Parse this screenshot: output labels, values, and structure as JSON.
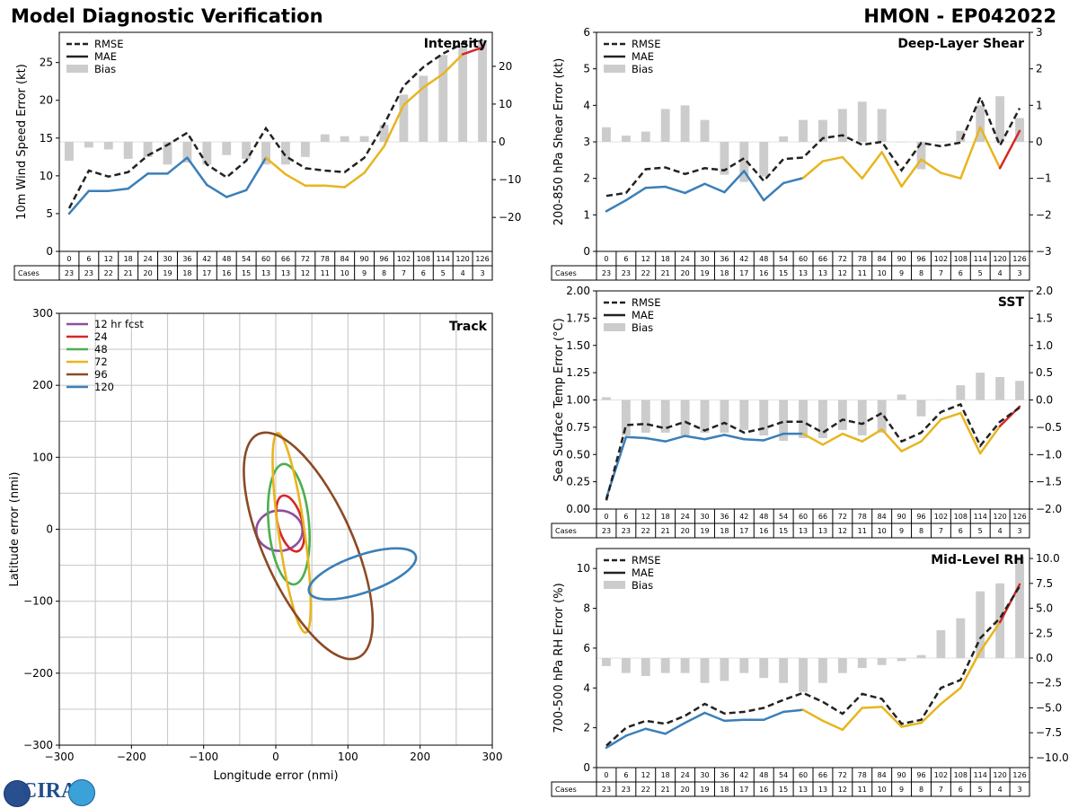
{
  "header": {
    "left_title": "Model Diagnostic Verification",
    "right_title": "HMON - EP042022"
  },
  "logo": {
    "text": "CIRA"
  },
  "colors": {
    "rmse": "#222222",
    "mae_early": "#3b7fb8",
    "mae_mid": "#e8b51e",
    "mae_late": "#d62728",
    "bias": "#cccccc",
    "track_12": "#8e4fa0",
    "track_24": "#d62728",
    "track_48": "#4caf50",
    "track_72": "#e8b51e",
    "track_96": "#8b4a25",
    "track_120": "#3b7fb8",
    "grid": "#cccccc"
  },
  "chart_data": [
    {
      "id": "intensity",
      "type": "line",
      "title": "Intensity",
      "ylabel": "10m Wind Speed Error (kt)",
      "ylim": [
        0,
        29
      ],
      "yticks": [
        0,
        5,
        10,
        15,
        20,
        25
      ],
      "y2lim": [
        -29,
        29
      ],
      "y2ticks": [
        -20,
        -10,
        0,
        10,
        20
      ],
      "x": [
        0,
        6,
        12,
        18,
        24,
        30,
        36,
        42,
        48,
        54,
        60,
        66,
        72,
        78,
        84,
        90,
        96,
        102,
        108,
        114,
        120,
        126
      ],
      "cases": [
        23,
        23,
        22,
        21,
        20,
        19,
        18,
        17,
        16,
        15,
        13,
        13,
        12,
        11,
        10,
        9,
        8,
        7,
        6,
        5,
        4,
        3
      ],
      "legend": [
        "RMSE",
        "MAE",
        "Bias"
      ],
      "rmse": [
        5.7,
        10.7,
        9.9,
        10.5,
        12.7,
        14.1,
        15.7,
        11.5,
        9.8,
        12,
        16.3,
        12.6,
        11,
        10.7,
        10.5,
        12.4,
        16.8,
        21.9,
        24.4,
        26.2,
        27.5,
        28
      ],
      "mae": [
        5,
        8,
        8,
        8.3,
        10.3,
        10.3,
        12.4,
        8.8,
        7.2,
        8.1,
        12.4,
        10.2,
        8.7,
        8.7,
        8.5,
        10.4,
        13.9,
        19.4,
        21.7,
        23.5,
        26.1,
        27
      ],
      "bias": [
        -5,
        -1.5,
        -2,
        -4.5,
        -4,
        -6,
        -5.5,
        -6,
        -3.5,
        -4.5,
        -6,
        -6,
        -4,
        2,
        1.5,
        1.5,
        4.5,
        12.5,
        17.5,
        23,
        25.5,
        27
      ]
    },
    {
      "id": "shear",
      "type": "line",
      "title": "Deep-Layer Shear",
      "ylabel": "200-850 hPa Shear Error (kt)",
      "ylim": [
        0,
        6
      ],
      "yticks": [
        0,
        1,
        2,
        3,
        4,
        5,
        6
      ],
      "y2lim": [
        -3,
        3
      ],
      "y2ticks": [
        -3,
        -2,
        -1,
        0,
        1,
        2,
        3
      ],
      "x": [
        0,
        6,
        12,
        18,
        24,
        30,
        36,
        42,
        48,
        54,
        60,
        66,
        72,
        78,
        84,
        90,
        96,
        102,
        108,
        114,
        120,
        126
      ],
      "cases": [
        23,
        23,
        22,
        21,
        20,
        19,
        18,
        17,
        16,
        15,
        13,
        13,
        12,
        11,
        10,
        9,
        8,
        7,
        6,
        5,
        4,
        3
      ],
      "legend": [
        "RMSE",
        "MAE",
        "Bias"
      ],
      "rmse": [
        1.52,
        1.6,
        2.25,
        2.3,
        2.12,
        2.28,
        2.22,
        2.55,
        1.93,
        2.53,
        2.57,
        3.1,
        3.18,
        2.92,
        3.0,
        2.22,
        2.97,
        2.88,
        2.98,
        4.22,
        2.9,
        3.92
      ],
      "mae": [
        1.1,
        1.4,
        1.74,
        1.77,
        1.6,
        1.85,
        1.62,
        2.2,
        1.4,
        1.87,
        2.01,
        2.47,
        2.58,
        2.0,
        2.72,
        1.78,
        2.52,
        2.15,
        2.0,
        3.4,
        2.28,
        3.3
      ],
      "bias": [
        0.4,
        0.17,
        0.28,
        0.9,
        1.0,
        0.6,
        -0.9,
        -1.1,
        -0.95,
        0.15,
        0.6,
        0.6,
        0.9,
        1.1,
        0.9,
        0,
        -0.75,
        0,
        0.3,
        1.0,
        1.25,
        0.65
      ]
    },
    {
      "id": "sst",
      "type": "line",
      "title": "SST",
      "ylabel": "Sea Surface Temp Error (°C)",
      "ylim": [
        0,
        2
      ],
      "yticks": [
        0.0,
        0.25,
        0.5,
        0.75,
        1.0,
        1.25,
        1.5,
        1.75,
        2.0
      ],
      "y2lim": [
        -2,
        2
      ],
      "y2ticks": [
        -2.0,
        -1.5,
        -1.0,
        -0.5,
        0.0,
        0.5,
        1.0,
        1.5,
        2.0
      ],
      "x": [
        0,
        6,
        12,
        18,
        24,
        30,
        36,
        42,
        48,
        54,
        60,
        66,
        72,
        78,
        84,
        90,
        96,
        102,
        108,
        114,
        120,
        126
      ],
      "cases": [
        23,
        23,
        22,
        21,
        20,
        19,
        18,
        17,
        16,
        15,
        13,
        13,
        12,
        11,
        10,
        9,
        8,
        7,
        6,
        5,
        4,
        3
      ],
      "legend": [
        "RMSE",
        "MAE",
        "Bias"
      ],
      "rmse": [
        0.08,
        0.77,
        0.78,
        0.74,
        0.8,
        0.72,
        0.79,
        0.7,
        0.74,
        0.8,
        0.8,
        0.7,
        0.82,
        0.78,
        0.88,
        0.62,
        0.7,
        0.89,
        0.96,
        0.58,
        0.8,
        0.93
      ],
      "mae": [
        0.1,
        0.66,
        0.65,
        0.62,
        0.67,
        0.64,
        0.68,
        0.64,
        0.63,
        0.69,
        0.69,
        0.59,
        0.69,
        0.62,
        0.73,
        0.53,
        0.62,
        0.82,
        0.88,
        0.51,
        0.76,
        0.94
      ],
      "bias": [
        0.05,
        -0.65,
        -0.6,
        -0.6,
        -0.65,
        -0.6,
        -0.6,
        -0.55,
        -0.65,
        -0.75,
        -0.7,
        -0.7,
        -0.55,
        -0.65,
        -0.6,
        0.1,
        -0.3,
        0,
        0.27,
        0.5,
        0.42,
        0.35
      ]
    },
    {
      "id": "rh",
      "type": "line",
      "title": "Mid-Level RH",
      "ylabel": "700-500 hPa RH Error (%)",
      "ylim": [
        0,
        11
      ],
      "yticks": [
        0,
        2,
        4,
        6,
        8,
        10
      ],
      "y2lim": [
        -11,
        11
      ],
      "y2ticks": [
        -10.0,
        -7.5,
        -5.0,
        -2.5,
        0.0,
        2.5,
        5.0,
        7.5,
        10.0
      ],
      "x": [
        0,
        6,
        12,
        18,
        24,
        30,
        36,
        42,
        48,
        54,
        60,
        66,
        72,
        78,
        84,
        90,
        96,
        102,
        108,
        114,
        120,
        126
      ],
      "cases": [
        23,
        23,
        22,
        21,
        20,
        19,
        18,
        17,
        16,
        15,
        13,
        13,
        12,
        11,
        10,
        9,
        8,
        7,
        6,
        5,
        4,
        3
      ],
      "legend": [
        "RMSE",
        "MAE",
        "Bias"
      ],
      "rmse": [
        1.1,
        2.0,
        2.35,
        2.2,
        2.6,
        3.2,
        2.72,
        2.8,
        3.0,
        3.4,
        3.75,
        3.3,
        2.7,
        3.7,
        3.45,
        2.2,
        2.4,
        4.0,
        4.4,
        6.5,
        7.5,
        9.1
      ],
      "mae": [
        1.0,
        1.6,
        1.95,
        1.7,
        2.25,
        2.75,
        2.35,
        2.4,
        2.4,
        2.8,
        2.9,
        2.35,
        1.9,
        3.0,
        3.05,
        2.05,
        2.25,
        3.2,
        4.0,
        5.85,
        7.3,
        9.2
      ],
      "bias": [
        -0.8,
        -1.5,
        -1.8,
        -1.5,
        -1.5,
        -2.5,
        -2.3,
        -1.5,
        -2.0,
        -2.5,
        -3.4,
        -2.5,
        -1.5,
        -1.0,
        -0.7,
        -0.3,
        0.3,
        2.8,
        4.0,
        6.7,
        7.5,
        10.2
      ]
    },
    {
      "id": "track",
      "type": "scatter",
      "title": "Track",
      "xlabel": "Longitude error (nmi)",
      "ylabel": "Latitude error (nmi)",
      "xlim": [
        -300,
        300
      ],
      "ylim": [
        -300,
        300
      ],
      "ticks": [
        -300,
        -200,
        -100,
        0,
        100,
        200,
        300
      ],
      "grid_step": 50,
      "ellipses": [
        {
          "label": "12 hr fcst",
          "cx": 5,
          "cy": -2,
          "rx": 32,
          "ry": 28,
          "rot": 0
        },
        {
          "label": "24",
          "cx": 20,
          "cy": 8,
          "rx": 17,
          "ry": 40,
          "rot": 15
        },
        {
          "label": "48",
          "cx": 18,
          "cy": 7,
          "rx": 28,
          "ry": 84,
          "rot": 5
        },
        {
          "label": "72",
          "cx": 22,
          "cy": -5,
          "rx": 18,
          "ry": 140,
          "rot": 8
        },
        {
          "label": "96",
          "cx": 45,
          "cy": -23,
          "rx": 62,
          "ry": 170,
          "rot": 24
        },
        {
          "label": "120",
          "cx": 120,
          "cy": -62,
          "rx": 78,
          "ry": 26,
          "rot": 19
        }
      ]
    }
  ]
}
